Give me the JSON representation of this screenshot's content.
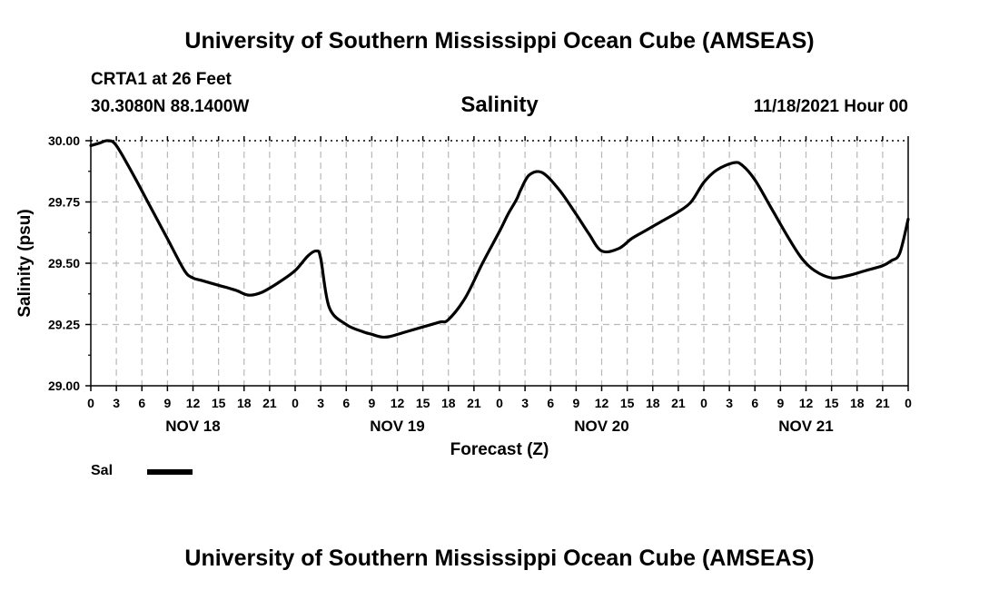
{
  "header": {
    "title_top": "University of Southern Mississippi Ocean Cube (AMSEAS)",
    "station": "CRTA1 at 26 Feet",
    "coords": "30.3080N  88.1400W",
    "chart_title": "Salinity",
    "date": "11/18/2021 Hour 00"
  },
  "footer": {
    "title_bottom": "University of Southern Mississippi Ocean Cube (AMSEAS)"
  },
  "legend": {
    "label": "Sal",
    "color": "#000000"
  },
  "chart_data": {
    "type": "line",
    "title": "Salinity",
    "xlabel": "Forecast (Z)",
    "ylabel": "Salinity (psu)",
    "xlim": [
      0,
      96
    ],
    "ylim": [
      29.0,
      30.0
    ],
    "yticks": [
      29.0,
      29.25,
      29.5,
      29.75,
      30.0
    ],
    "ytick_labels": [
      "29.00",
      "29.25",
      "29.50",
      "29.75",
      "30.00"
    ],
    "xtick_labels": [
      "0",
      "3",
      "6",
      "9",
      "12",
      "15",
      "18",
      "21",
      "0",
      "3",
      "6",
      "9",
      "12",
      "15",
      "18",
      "21",
      "0",
      "3",
      "6",
      "9",
      "12",
      "15",
      "18",
      "21",
      "0",
      "3",
      "6",
      "9",
      "12",
      "15",
      "18",
      "21",
      "0"
    ],
    "day_labels": [
      {
        "label": "NOV 18",
        "hour": 12
      },
      {
        "label": "NOV 19",
        "hour": 36
      },
      {
        "label": "NOV 20",
        "hour": 60
      },
      {
        "label": "NOV 21",
        "hour": 84
      }
    ],
    "grid": true,
    "series": [
      {
        "name": "Sal",
        "color": "#000000",
        "x": [
          0,
          1,
          2,
          3,
          5,
          7,
          9,
          11,
          12,
          13,
          15,
          17,
          18.5,
          20,
          22,
          24,
          25.5,
          26.5,
          27,
          28,
          30,
          32,
          33,
          34,
          35,
          37,
          39,
          41,
          42,
          44,
          46,
          48,
          49,
          50,
          50.5,
          51.5,
          53,
          55,
          57,
          58.5,
          60,
          62,
          63.5,
          65,
          67,
          69,
          70.5,
          72,
          73.5,
          75.5,
          76.5,
          78,
          80,
          82,
          83.5,
          85,
          87,
          89,
          91,
          93,
          94,
          95,
          96
        ],
        "y": [
          29.98,
          29.99,
          30.0,
          29.98,
          29.86,
          29.73,
          29.6,
          29.47,
          29.44,
          29.43,
          29.41,
          29.39,
          29.37,
          29.38,
          29.42,
          29.47,
          29.53,
          29.55,
          29.52,
          29.32,
          29.25,
          29.22,
          29.21,
          29.2,
          29.2,
          29.22,
          29.24,
          29.26,
          29.27,
          29.36,
          29.5,
          29.63,
          29.7,
          29.76,
          29.8,
          29.86,
          29.87,
          29.8,
          29.7,
          29.62,
          29.55,
          29.56,
          29.6,
          29.63,
          29.67,
          29.71,
          29.75,
          29.83,
          29.88,
          29.91,
          29.9,
          29.84,
          29.72,
          29.6,
          29.52,
          29.47,
          29.44,
          29.45,
          29.47,
          29.49,
          29.51,
          29.54,
          29.68
        ]
      }
    ]
  }
}
